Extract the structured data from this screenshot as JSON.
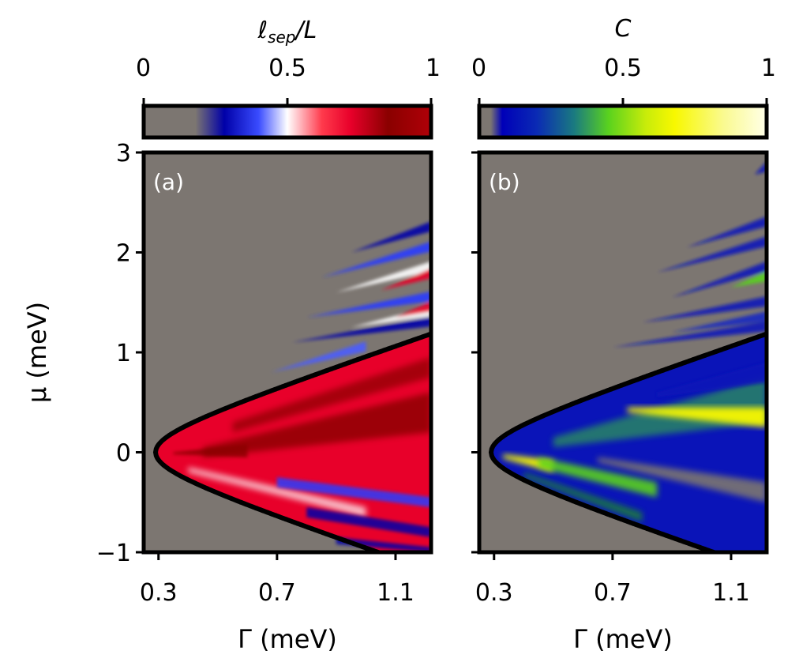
{
  "chart_data": [
    {
      "type": "heatmap",
      "panel_label": "(a)",
      "colorbar": {
        "title_main": "ℓ",
        "title_sub": "sep",
        "title_rest": "/L",
        "ticks": [
          0,
          0.5,
          1
        ],
        "tick_labels": [
          "0",
          "0.5",
          "1"
        ],
        "range": [
          0,
          1
        ],
        "colormap": "seismic (gray below threshold)"
      },
      "x_ticks": [
        0.3,
        0.7,
        1.1
      ],
      "x_tick_labels": [
        "0.3",
        "0.7",
        "1.1"
      ],
      "y_ticks": [
        3,
        2,
        1,
        0,
        -1
      ],
      "y_tick_labels": [
        "3",
        "2",
        "1",
        "0",
        "−1"
      ],
      "xlim": [
        0.25,
        1.22
      ],
      "ylim": [
        -1,
        3
      ],
      "xlabel": "Γ (meV)",
      "ylabel": "μ (meV)",
      "boundary": "μ = ±sqrt(Γ² − Δ²), Δ ≈ 0.29 meV",
      "background": "#7c7671"
    },
    {
      "type": "heatmap",
      "panel_label": "(b)",
      "colorbar": {
        "title": "C",
        "ticks": [
          0,
          0.5,
          1
        ],
        "tick_labels": [
          "0",
          "0.5",
          "1"
        ],
        "range": [
          0,
          1
        ],
        "colormap": "gnuplot2-like (gray below threshold)"
      },
      "x_ticks": [
        0.3,
        0.7,
        1.1
      ],
      "x_tick_labels": [
        "0.3",
        "0.7",
        "1.1"
      ],
      "xlim": [
        0.25,
        1.22
      ],
      "ylim": [
        -1,
        3
      ],
      "xlabel": "Γ (meV)",
      "boundary": "μ = ±sqrt(Γ² − Δ²), Δ ≈ 0.29 meV",
      "background": "#7c7671"
    }
  ],
  "colors": {
    "gray": "#7c7671",
    "seismic_blue": "#0000a8",
    "seismic_red": "#e8002a",
    "seismic_dark_red": "#8a0000",
    "gnu_blue": "#0a14c0",
    "gnu_green": "#5ad21e",
    "gnu_yellow": "#f8f800"
  }
}
